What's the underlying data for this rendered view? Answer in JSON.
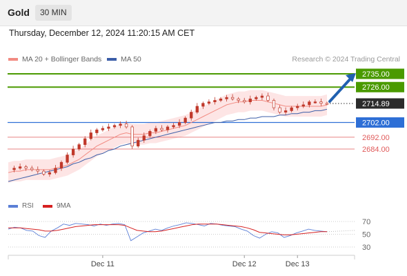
{
  "header": {
    "instrument": "Gold",
    "timeframe": "30 MIN"
  },
  "datetime": "Thursday, December 12, 2024 11:20:15 AM CET",
  "legend": {
    "ma20_label": "MA 20 + Bollinger Bands",
    "ma50_label": "MA 50",
    "credit": "Research © 2024 Trading Central"
  },
  "colors": {
    "ma20": "#f28b82",
    "ma50": "#3b5ea8",
    "band_fill": "#fde0e0",
    "candle": "#c0392b",
    "resistance": "#4a9a00",
    "pivot": "#2e6fd6",
    "support": "#e05a5a",
    "rsi": "#5b7fd6",
    "rsi_ma": "#d62020",
    "arrow": "#2060b0",
    "current": "#2b2b2b"
  },
  "chart_data": [
    {
      "type": "line",
      "title": "",
      "price_range": [
        2660,
        2740
      ],
      "levels": [
        {
          "name": "resistance-2",
          "value": 2735.0,
          "label": "2735.00",
          "kind": "resistance"
        },
        {
          "name": "resistance-1",
          "value": 2726.0,
          "label": "2726.00",
          "kind": "resistance"
        },
        {
          "name": "current",
          "value": 2714.89,
          "label": "2714.89",
          "kind": "current"
        },
        {
          "name": "pivot",
          "value": 2702.0,
          "label": "2702.00",
          "kind": "pivot"
        },
        {
          "name": "support-1",
          "value": 2692.0,
          "label": "2692.00",
          "kind": "support"
        },
        {
          "name": "support-2",
          "value": 2684.0,
          "label": "2684.00",
          "kind": "support"
        }
      ],
      "price_path": [
        2670,
        2671,
        2672,
        2671,
        2670,
        2669,
        2667,
        2668,
        2671,
        2675,
        2680,
        2684,
        2687,
        2691,
        2695,
        2697,
        2698,
        2699,
        2700,
        2701,
        2699,
        2686,
        2690,
        2693,
        2696,
        2698,
        2697,
        2699,
        2700,
        2702,
        2705,
        2709,
        2713,
        2715,
        2716,
        2717,
        2718,
        2719,
        2718,
        2717,
        2716,
        2718,
        2719,
        2720,
        2717,
        2712,
        2709,
        2710,
        2712,
        2713,
        2714,
        2716,
        2716,
        2715,
        2714.89
      ],
      "ma20": [
        2668,
        2669,
        2669,
        2670,
        2670,
        2670,
        2670,
        2670,
        2671,
        2672,
        2673,
        2675,
        2677,
        2680,
        2683,
        2686,
        2688,
        2690,
        2692,
        2694,
        2695,
        2694,
        2694,
        2694,
        2695,
        2695,
        2696,
        2697,
        2698,
        2699,
        2700,
        2702,
        2704,
        2706,
        2708,
        2710,
        2712,
        2714,
        2715,
        2716,
        2716,
        2717,
        2717,
        2717,
        2716,
        2715,
        2714,
        2713,
        2713,
        2713,
        2713,
        2713,
        2713,
        2713,
        2714
      ],
      "ma50": [
        2662,
        2663,
        2664,
        2665,
        2666,
        2667,
        2668,
        2669,
        2670,
        2671,
        2672,
        2674,
        2675,
        2677,
        2678,
        2680,
        2681,
        2683,
        2684,
        2686,
        2687,
        2688,
        2689,
        2690,
        2691,
        2692,
        2693,
        2694,
        2695,
        2696,
        2697,
        2698,
        2699,
        2700,
        2701,
        2702,
        2702,
        2703,
        2703,
        2704,
        2704,
        2705,
        2705,
        2706,
        2706,
        2706,
        2707,
        2707,
        2708,
        2708,
        2709,
        2709,
        2710,
        2710,
        2711
      ],
      "band_width": 7,
      "x_ticks": [
        {
          "label": "Dec 11",
          "index": 16
        },
        {
          "label": "Dec 12",
          "index": 40
        },
        {
          "label": "Dec 13",
          "index": 49
        }
      ]
    },
    {
      "type": "line",
      "title": "",
      "series_labels": {
        "rsi": "RSI",
        "ma": "9MA"
      },
      "y_ticks": [
        "70",
        "50",
        "30"
      ],
      "ylim": [
        20,
        80
      ],
      "rsi": [
        58,
        61,
        60,
        56,
        55,
        48,
        45,
        55,
        60,
        66,
        64,
        67,
        66,
        65,
        63,
        66,
        64,
        66,
        67,
        65,
        40,
        46,
        52,
        55,
        58,
        56,
        60,
        63,
        65,
        68,
        67,
        65,
        63,
        67,
        66,
        64,
        63,
        62,
        58,
        55,
        48,
        44,
        50,
        54,
        52,
        45,
        48,
        52,
        55,
        58,
        56,
        55,
        54
      ],
      "rsi_ma": [
        60,
        60,
        60,
        59,
        58,
        57,
        55,
        55,
        56,
        58,
        60,
        62,
        63,
        64,
        65,
        65,
        65,
        65,
        65,
        64,
        60,
        56,
        55,
        54,
        54,
        55,
        57,
        59,
        61,
        63,
        65,
        66,
        66,
        66,
        66,
        65,
        64,
        63,
        62,
        60,
        57,
        53,
        52,
        51,
        50,
        49,
        49,
        50,
        51,
        52,
        53,
        54,
        54
      ]
    }
  ]
}
